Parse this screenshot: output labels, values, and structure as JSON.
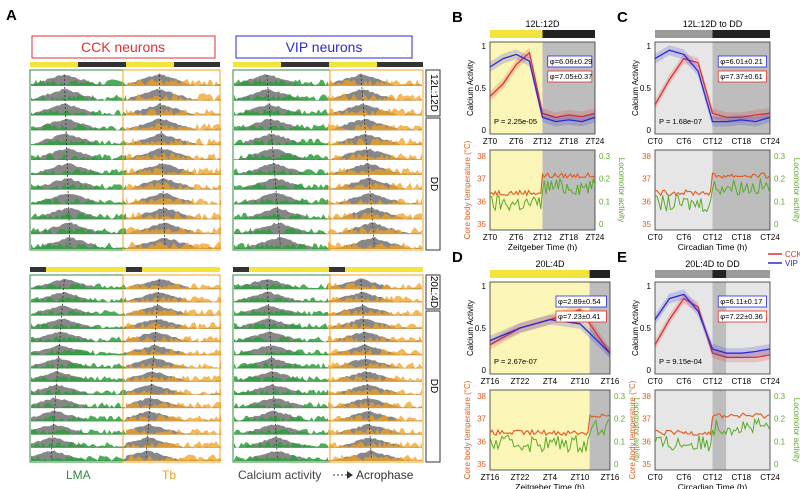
{
  "panel_letters": {
    "A": "A",
    "B": "B",
    "C": "C",
    "D": "D",
    "E": "E"
  },
  "panelA": {
    "cck_title": "CCK neurons",
    "vip_title": "VIP neurons",
    "top_condition": "12L:12D",
    "bottom_condition": "20L:4D",
    "dd_label": "DD",
    "footer": {
      "lma": "LMA",
      "tb": "Tb",
      "calcium": "Calcium activity",
      "acrophase": "Acrophase"
    }
  },
  "panelB": {
    "header": "12L:12D",
    "ylabel": "Calcium Activity",
    "pvalue": "P = 2.25e-05",
    "phi_vip": "φ=6.06±0.29",
    "phi_cck": "φ=7.05±0.37",
    "xticks": [
      "ZT0",
      "ZT6",
      "ZT12",
      "ZT18",
      "ZT24"
    ],
    "xlabel": "Zeitgeber Time (h)",
    "ylabel_left": "Core body temperature (°C)",
    "ylabel_right": "Locomotor activity",
    "yticks_left": [
      "38",
      "37",
      "36",
      "35"
    ],
    "yticks_right": [
      "0.3",
      "0.2",
      "0.1",
      "0"
    ]
  },
  "panelC": {
    "header": "12L:12D to DD",
    "ylabel": "Calcium Activity",
    "pvalue": "P = 1.68e-07",
    "phi_vip": "φ=6.01±0.21",
    "phi_cck": "φ=7.37±0.61",
    "xticks": [
      "CT0",
      "CT6",
      "CT12",
      "CT18",
      "CT24"
    ],
    "xlabel": "Circadian Time (h)",
    "ylabel_right": "Locomotor activity",
    "yticks_left": [
      "38",
      "37",
      "36",
      "35"
    ],
    "yticks_right": [
      "0.3",
      "0.2",
      "0.1",
      "0"
    ]
  },
  "panelD": {
    "header": "20L:4D",
    "ylabel": "Calcium Activity",
    "pvalue": "P = 2.67e-07",
    "phi_vip": "φ=2.89±0.54",
    "phi_cck": "φ=7.23±0.41",
    "xticks": [
      "ZT16",
      "ZT22",
      "ZT4",
      "ZT10",
      "ZT16"
    ],
    "xlabel": "Zeitgeber Time (h)",
    "ylabel_left": "Core body temperature (°C)",
    "ylabel_right": "Locomotor activity",
    "yticks_left": [
      "38",
      "37",
      "36",
      "35"
    ],
    "yticks_right": [
      "0.3",
      "0.2",
      "0.1",
      "0"
    ]
  },
  "panelE": {
    "header": "20L:4D to DD",
    "ylabel": "Calcium Activity",
    "pvalue": "P = 9.15e-04",
    "phi_vip": "φ=6.11±0.17",
    "phi_cck": "φ=7.22±0.36",
    "legend_cck": "CCK",
    "legend_vip": "VIP",
    "xticks": [
      "CT0",
      "CT6",
      "CT12",
      "CT18",
      "CT24"
    ],
    "xlabel": "Circadian Time (h)",
    "ylabel_left": "Core body temperature (°C)",
    "ylabel_right": "Locomotor activity",
    "yticks_left": [
      "38",
      "37",
      "36",
      "35"
    ],
    "yticks_right": [
      "0.3",
      "0.2",
      "0.1",
      "0"
    ]
  },
  "common_yticks": [
    "1",
    "0.5",
    "0"
  ],
  "colors": {
    "cck": "#e03030",
    "vip": "#2b2bd6",
    "temp": "#e05a1e",
    "loco": "#5aaa28",
    "light": "#f2e43a",
    "dark": "#222",
    "gray": "#777",
    "orange": "#f0a020",
    "green": "#2e8b3c"
  },
  "chart_data": [
    {
      "type": "line",
      "panel": "B",
      "x": [
        0,
        3,
        6,
        9,
        12,
        15,
        18,
        21,
        24
      ],
      "series": [
        {
          "name": "CCK",
          "values": [
            0.4,
            0.55,
            0.78,
            0.92,
            0.2,
            0.15,
            0.18,
            0.16,
            0.2
          ]
        },
        {
          "name": "VIP",
          "values": [
            0.75,
            0.85,
            0.9,
            0.82,
            0.15,
            0.1,
            0.12,
            0.1,
            0.15
          ]
        }
      ]
    },
    {
      "type": "line",
      "panel": "C",
      "x": [
        0,
        3,
        6,
        9,
        12,
        15,
        18,
        21,
        24
      ],
      "series": [
        {
          "name": "CCK",
          "values": [
            0.3,
            0.6,
            0.85,
            0.8,
            0.2,
            0.15,
            0.15,
            0.18,
            0.2
          ]
        },
        {
          "name": "VIP",
          "values": [
            0.85,
            0.95,
            0.9,
            0.7,
            0.1,
            0.1,
            0.12,
            0.1,
            0.15
          ]
        }
      ]
    },
    {
      "type": "line",
      "panel": "D",
      "x": [
        16,
        22,
        4,
        10,
        16
      ],
      "series": [
        {
          "name": "CCK",
          "values": [
            0.3,
            0.5,
            0.6,
            0.72,
            0.2
          ]
        },
        {
          "name": "VIP",
          "values": [
            0.35,
            0.5,
            0.6,
            0.55,
            0.2
          ]
        }
      ]
    },
    {
      "type": "line",
      "panel": "E",
      "x": [
        0,
        3,
        6,
        9,
        12,
        15,
        18,
        21,
        24
      ],
      "series": [
        {
          "name": "CCK",
          "values": [
            0.3,
            0.6,
            0.85,
            0.75,
            0.2,
            0.15,
            0.15,
            0.15,
            0.18
          ]
        },
        {
          "name": "VIP",
          "values": [
            0.6,
            0.85,
            0.9,
            0.7,
            0.25,
            0.2,
            0.2,
            0.22,
            0.25
          ]
        }
      ]
    }
  ]
}
